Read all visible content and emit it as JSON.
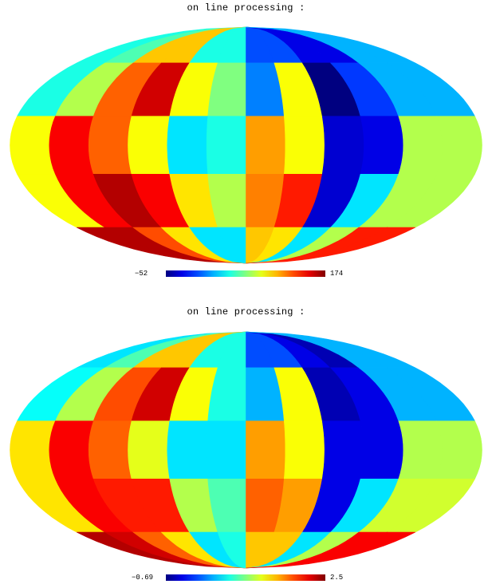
{
  "panels": [
    {
      "title": "on line processing :",
      "colorbar": {
        "min_label": "−52",
        "max_label": "174",
        "min": -52,
        "max": 174
      },
      "pixel_levels": [
        [
          0.4,
          0.45,
          0.68,
          0.68,
          0.4,
          0.4,
          0.2,
          0.2,
          0.1,
          0.1,
          0.3,
          0.3
        ],
        [
          0.4,
          0.55,
          0.78,
          0.92,
          0.62,
          0.5,
          0.25,
          0.62,
          0.0,
          0.18,
          0.3,
          0.3
        ],
        [
          0.62,
          0.88,
          0.78,
          0.62,
          0.35,
          0.4,
          0.72,
          0.62,
          0.08,
          0.1,
          0.55,
          0.55
        ],
        [
          0.62,
          0.88,
          0.95,
          0.88,
          0.65,
          0.55,
          0.75,
          0.85,
          0.08,
          0.35,
          0.55,
          0.55
        ],
        [
          0.95,
          0.95,
          0.8,
          0.65,
          0.35,
          0.35,
          0.68,
          0.65,
          0.35,
          0.55,
          0.85,
          0.85
        ]
      ]
    },
    {
      "title": "on line processing :",
      "colorbar": {
        "min_label": "−0.69",
        "max_label": "2.5",
        "min": -0.69,
        "max": 2.5
      },
      "pixel_levels": [
        [
          0.35,
          0.45,
          0.68,
          0.68,
          0.4,
          0.4,
          0.2,
          0.2,
          0.1,
          0.05,
          0.3,
          0.3
        ],
        [
          0.38,
          0.55,
          0.8,
          0.92,
          0.62,
          0.4,
          0.3,
          0.62,
          0.05,
          0.1,
          0.3,
          0.3
        ],
        [
          0.65,
          0.88,
          0.78,
          0.6,
          0.35,
          0.35,
          0.72,
          0.62,
          0.1,
          0.1,
          0.55,
          0.55
        ],
        [
          0.65,
          0.88,
          0.85,
          0.85,
          0.55,
          0.45,
          0.78,
          0.72,
          0.1,
          0.35,
          0.58,
          0.58
        ],
        [
          0.95,
          0.92,
          0.78,
          0.65,
          0.35,
          0.4,
          0.68,
          0.68,
          0.35,
          0.55,
          0.88,
          0.88
        ]
      ]
    }
  ]
}
